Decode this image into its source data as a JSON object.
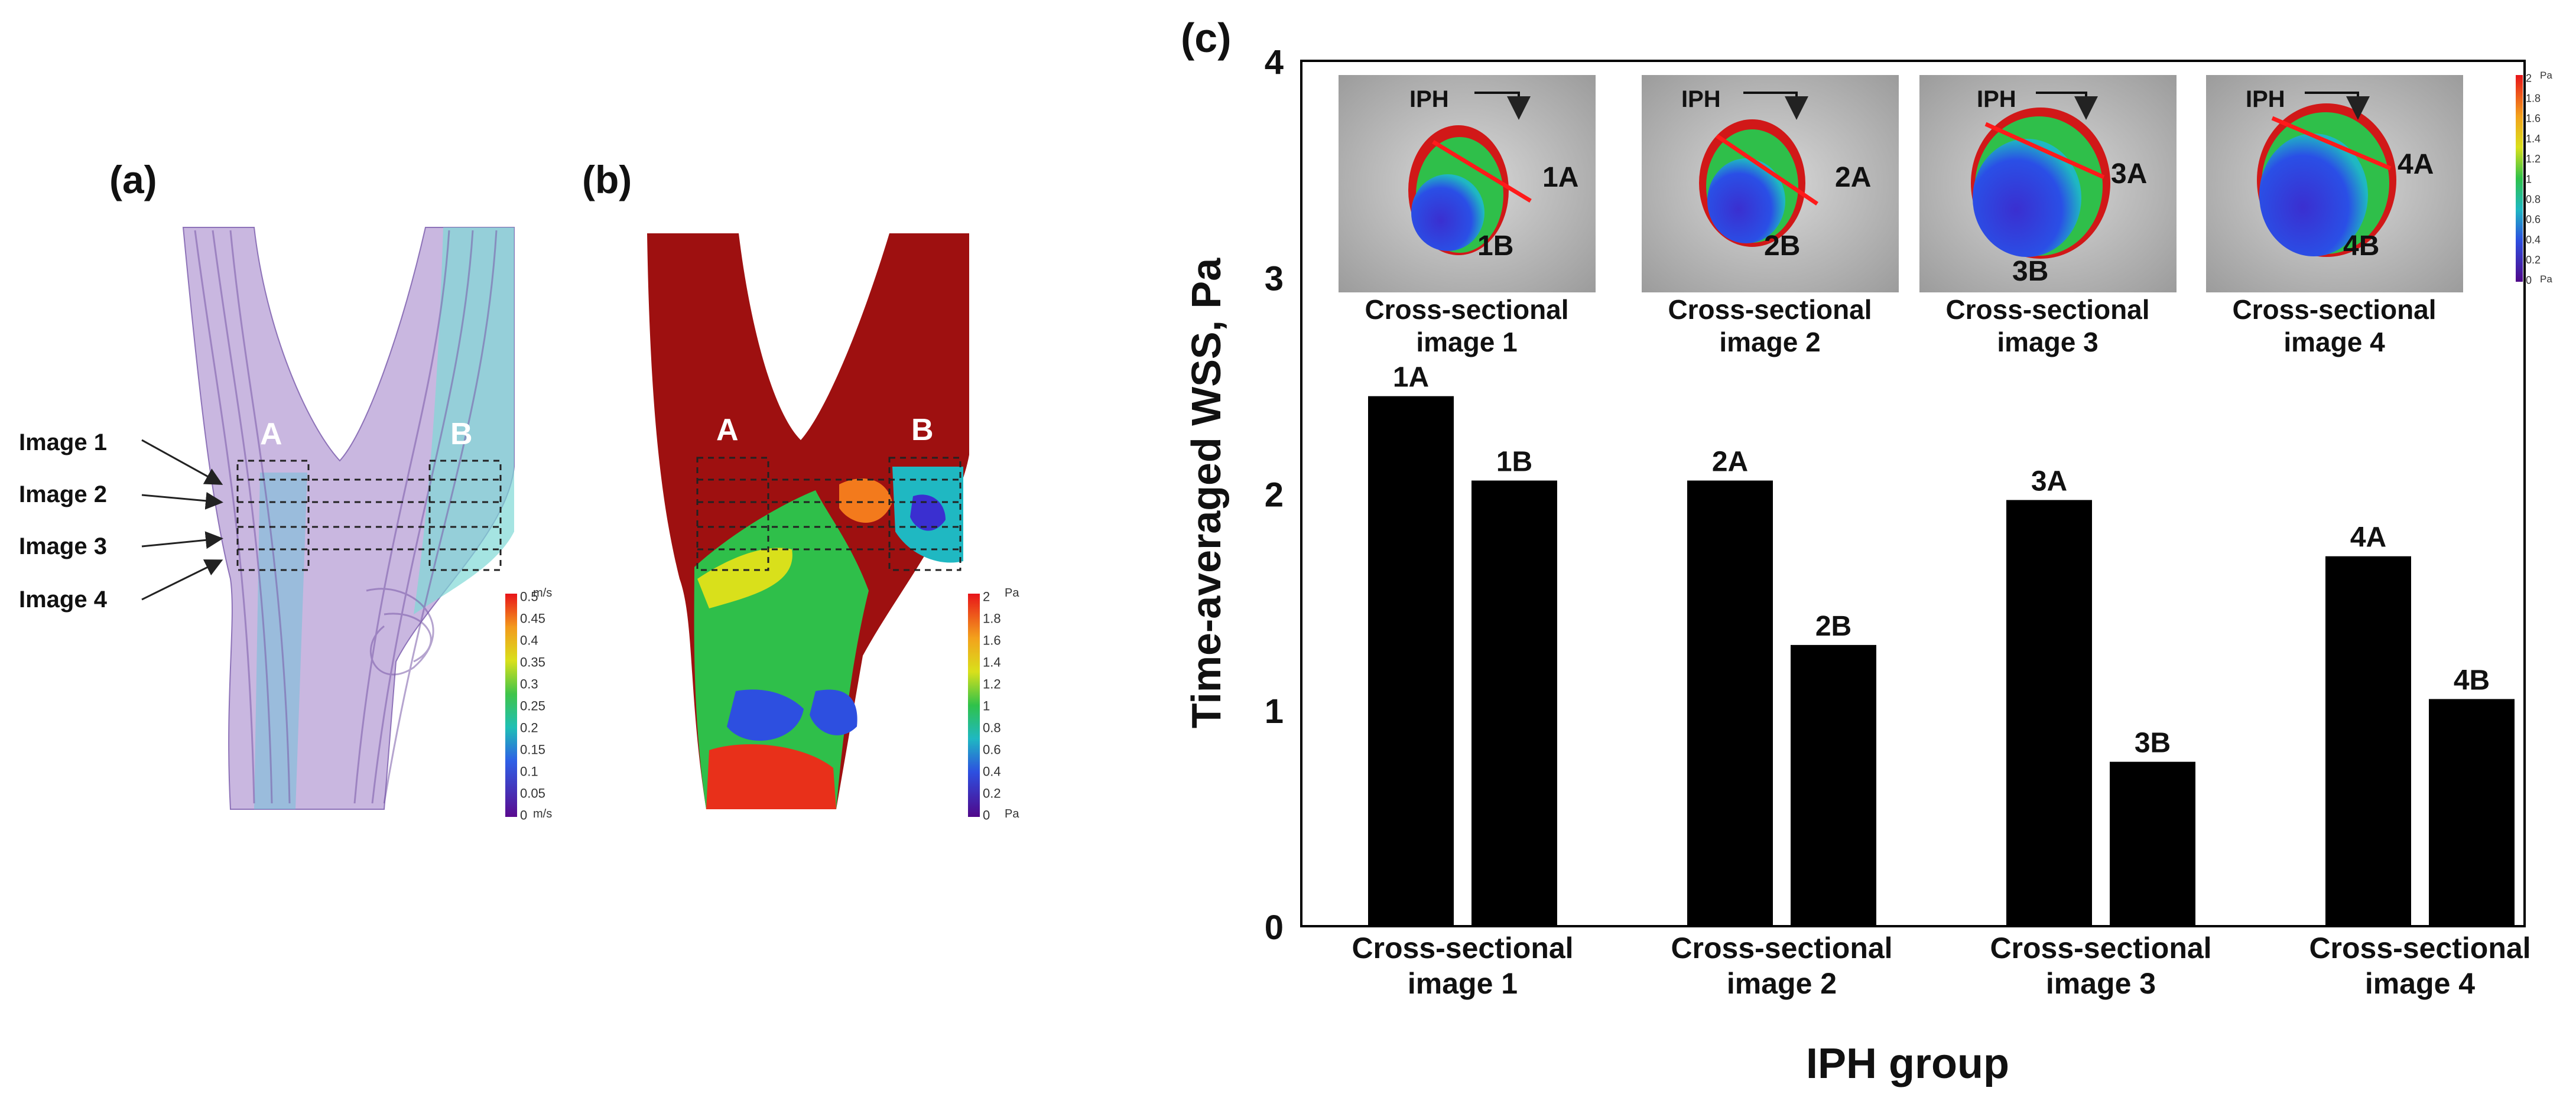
{
  "panels": {
    "a": {
      "label": "(a)",
      "region_a": "A",
      "region_b": "B",
      "image_labels": [
        "Image 1",
        "Image 2",
        "Image 3",
        "Image 4"
      ],
      "legend": {
        "unit": "m/s",
        "ticks": [
          "0.5",
          "0.45",
          "0.4",
          "0.35",
          "0.3",
          "0.25",
          "0.2",
          "0.15",
          "0.1",
          "0.05",
          "0"
        ]
      }
    },
    "b": {
      "label": "(b)",
      "region_a": "A",
      "region_b": "B",
      "legend": {
        "unit": "Pa",
        "ticks": [
          "2",
          "1.8",
          "1.6",
          "1.4",
          "1.2",
          "1",
          "0.8",
          "0.6",
          "0.4",
          "0.2",
          "0"
        ]
      }
    },
    "c": {
      "label": "(c)",
      "iph_tag": "IPH",
      "cross_sections": [
        {
          "caption_1": "Cross-sectional",
          "caption_2": "image 1",
          "label_a": "1A",
          "label_b": "1B"
        },
        {
          "caption_1": "Cross-sectional",
          "caption_2": "image 2",
          "label_a": "2A",
          "label_b": "2B"
        },
        {
          "caption_1": "Cross-sectional",
          "caption_2": "image 3",
          "label_a": "3A",
          "label_b": "3B"
        },
        {
          "caption_1": "Cross-sectional",
          "caption_2": "image 4",
          "label_a": "4A",
          "label_b": "4B"
        }
      ],
      "legend": {
        "unit": "Pa",
        "ticks": [
          "2",
          "1.8",
          "1.6",
          "1.4",
          "1.2",
          "1",
          "0.8",
          "0.6",
          "0.4",
          "0.2",
          "0"
        ]
      }
    }
  },
  "chart_data": {
    "type": "bar",
    "categories": [
      [
        "Cross-sectional",
        "image 1"
      ],
      [
        "Cross-sectional",
        "image 2"
      ],
      [
        "Cross-sectional",
        "image 3"
      ],
      [
        "Cross-sectional",
        "image 4"
      ]
    ],
    "series": [
      {
        "values": [
          2.45,
          2.06,
          1.97,
          1.71
        ]
      },
      {
        "values": [
          2.06,
          1.3,
          0.76,
          1.05
        ]
      }
    ],
    "data_labels": [
      [
        "1A",
        "2A",
        "3A",
        "4A"
      ],
      [
        "1B",
        "2B",
        "3B",
        "4B"
      ]
    ],
    "xlabel": "IPH group",
    "ylabel": "Time-averaged WSS, Pa",
    "ylim": [
      0,
      4
    ],
    "yticks": [
      0,
      1,
      2,
      3,
      4
    ],
    "bar_color": "#000000",
    "grid": false,
    "legend": "none"
  }
}
